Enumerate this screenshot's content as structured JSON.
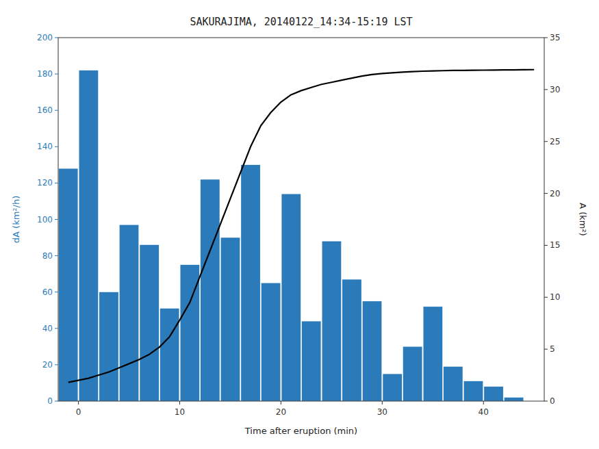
{
  "chart_data": {
    "type": "bar",
    "title": "SAKURAJIMA, 20140122_14:34-15:19 LST",
    "xlabel": "Time after eruption (min)",
    "ylabel": "dA (km²/h)",
    "y2label": "A (km²)",
    "xlim": [
      -2,
      46
    ],
    "xticks": [
      0,
      10,
      20,
      30,
      40
    ],
    "ylim": [
      0,
      200
    ],
    "yticks": [
      0,
      20,
      40,
      60,
      80,
      100,
      120,
      140,
      160,
      180,
      200
    ],
    "y2lim": [
      0,
      35
    ],
    "y2ticks": [
      0,
      5,
      10,
      15,
      20,
      25,
      30,
      35
    ],
    "grid": false,
    "series": [
      {
        "type": "bar",
        "color": "#2b7bba",
        "x": [
          -1,
          1,
          3,
          5,
          7,
          9,
          11,
          13,
          15,
          17,
          19,
          21,
          23,
          25,
          27,
          29,
          31,
          33,
          35,
          37,
          39,
          41,
          43,
          45
        ],
        "values": [
          128,
          182,
          60,
          97,
          86,
          51,
          75,
          122,
          90,
          130,
          65,
          114,
          44,
          88,
          67,
          55,
          15,
          30,
          52,
          19,
          11,
          8,
          2,
          0
        ]
      },
      {
        "type": "line",
        "color": "#000000",
        "axis": "y2",
        "x": [
          -1,
          0,
          1,
          2,
          3,
          4,
          5,
          6,
          7,
          8,
          9,
          10,
          11,
          12,
          13,
          14,
          15,
          16,
          17,
          18,
          19,
          20,
          21,
          22,
          23,
          24,
          25,
          26,
          27,
          28,
          29,
          30,
          31,
          32,
          33,
          34,
          35,
          36,
          37,
          38,
          39,
          40,
          41,
          42,
          43,
          44,
          45
        ],
        "values": [
          1.8,
          2.0,
          2.2,
          2.5,
          2.8,
          3.2,
          3.6,
          4.0,
          4.5,
          5.2,
          6.2,
          7.8,
          9.5,
          12.0,
          14.5,
          17.0,
          19.5,
          22.0,
          24.5,
          26.5,
          27.8,
          28.8,
          29.5,
          29.9,
          30.2,
          30.5,
          30.7,
          30.9,
          31.1,
          31.3,
          31.45,
          31.55,
          31.62,
          31.68,
          31.73,
          31.77,
          31.8,
          31.82,
          31.84,
          31.85,
          31.86,
          31.87,
          31.88,
          31.89,
          31.9,
          31.91,
          31.92
        ]
      }
    ]
  }
}
